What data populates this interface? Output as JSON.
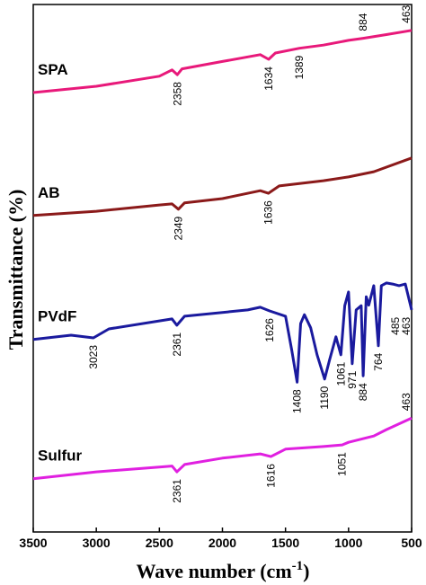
{
  "chart_data": {
    "type": "line",
    "ylabel": "Transmittance (%)",
    "xlabel_parts": [
      "Wave number (cm",
      "-1",
      ")"
    ],
    "xlim": [
      3500,
      500
    ],
    "xticks": [
      3500,
      3000,
      2500,
      2000,
      1500,
      1000,
      500
    ],
    "ylim": [
      0,
      100
    ],
    "series": [
      {
        "name": "SPA",
        "color": "#e8197a",
        "x": [
          3500,
          3000,
          2500,
          2400,
          2358,
          2320,
          2000,
          1700,
          1634,
          1580,
          1389,
          1200,
          1000,
          884,
          700,
          500
        ],
        "values": [
          83.3,
          84.5,
          86.4,
          87.6,
          86.7,
          87.8,
          89.2,
          90.5,
          89.6,
          90.8,
          91.7,
          92.3,
          93.2,
          93.6,
          94.3,
          95.1
        ],
        "peaks": [
          {
            "x": 2358,
            "position": "below"
          },
          {
            "x": 1634,
            "position": "below"
          },
          {
            "x": 1389,
            "position": "below"
          },
          {
            "x": 884,
            "position": "above"
          },
          {
            "x": 463,
            "position": "above"
          }
        ]
      },
      {
        "name": "AB",
        "color": "#8b1a1a",
        "x": [
          3500,
          3000,
          2500,
          2400,
          2349,
          2300,
          2000,
          1700,
          1636,
          1550,
          1200,
          1000,
          800,
          500
        ],
        "values": [
          60.0,
          60.8,
          62.0,
          62.2,
          61.2,
          62.4,
          63.2,
          64.7,
          64.2,
          65.6,
          66.6,
          67.3,
          68.3,
          70.9
        ],
        "peaks": [
          {
            "x": 2349,
            "position": "below"
          },
          {
            "x": 1636,
            "position": "below"
          }
        ]
      },
      {
        "name": "PVdF",
        "color": "#1a1a9e",
        "x": [
          3500,
          3200,
          3023,
          2900,
          2400,
          2361,
          2300,
          1800,
          1700,
          1626,
          1500,
          1450,
          1408,
          1380,
          1350,
          1300,
          1250,
          1190,
          1150,
          1100,
          1061,
          1030,
          1000,
          971,
          940,
          900,
          884,
          860,
          840,
          800,
          764,
          740,
          700,
          650,
          600,
          550,
          500
        ],
        "values": [
          36.5,
          37.3,
          36.8,
          38.5,
          40.4,
          39.2,
          40.9,
          42.1,
          42.6,
          41.9,
          40.9,
          34.4,
          28.4,
          39.5,
          41.2,
          38.7,
          33.6,
          29.0,
          32.7,
          37.0,
          33.6,
          42.9,
          45.5,
          31.9,
          42.1,
          42.9,
          29.6,
          44.6,
          43.0,
          46.7,
          35.3,
          46.7,
          47.2,
          47.0,
          46.7,
          47.0,
          42.1
        ],
        "peaks": [
          {
            "x": 3023,
            "position": "below"
          },
          {
            "x": 2361,
            "position": "below"
          },
          {
            "x": 1626,
            "position": "below"
          },
          {
            "x": 1408,
            "position": "below"
          },
          {
            "x": 1190,
            "position": "below"
          },
          {
            "x": 1061,
            "position": "below"
          },
          {
            "x": 971,
            "position": "below"
          },
          {
            "x": 884,
            "position": "below"
          },
          {
            "x": 764,
            "position": "below"
          },
          {
            "x": 485,
            "position": "below"
          },
          {
            "x": 463,
            "position": "below"
          }
        ]
      },
      {
        "name": "Sulfur",
        "color": "#e020e0",
        "x": [
          3500,
          3000,
          2500,
          2400,
          2361,
          2300,
          2000,
          1700,
          1616,
          1500,
          1200,
          1051,
          1000,
          800,
          700,
          500
        ],
        "values": [
          10.1,
          11.4,
          12.3,
          12.5,
          11.4,
          12.8,
          14.0,
          14.8,
          14.3,
          15.7,
          16.2,
          16.5,
          17.0,
          18.2,
          19.4,
          21.6
        ],
        "peaks": [
          {
            "x": 2361,
            "position": "below"
          },
          {
            "x": 1616,
            "position": "below"
          },
          {
            "x": 1051,
            "position": "below"
          },
          {
            "x": 463,
            "position": "above"
          }
        ]
      }
    ]
  }
}
